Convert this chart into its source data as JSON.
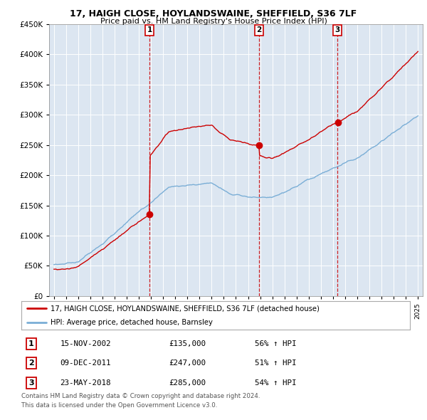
{
  "title": "17, HAIGH CLOSE, HOYLANDSWAINE, SHEFFIELD, S36 7LF",
  "subtitle": "Price paid vs. HM Land Registry's House Price Index (HPI)",
  "background_color": "#ffffff",
  "plot_bg_color": "#dce6f1",
  "grid_color": "#ffffff",
  "ylim": [
    0,
    450000
  ],
  "yticks": [
    0,
    50000,
    100000,
    150000,
    200000,
    250000,
    300000,
    350000,
    400000,
    450000
  ],
  "sale_info": [
    {
      "label": "1",
      "date": "15-NOV-2002",
      "price": "£135,000",
      "hpi": "56% ↑ HPI"
    },
    {
      "label": "2",
      "date": "09-DEC-2011",
      "price": "£247,000",
      "hpi": "51% ↑ HPI"
    },
    {
      "label": "3",
      "date": "23-MAY-2018",
      "price": "£285,000",
      "hpi": "54% ↑ HPI"
    }
  ],
  "legend_line1": "17, HAIGH CLOSE, HOYLANDSWAINE, SHEFFIELD, S36 7LF (detached house)",
  "legend_line2": "HPI: Average price, detached house, Barnsley",
  "footnote1": "Contains HM Land Registry data © Crown copyright and database right 2024.",
  "footnote2": "This data is licensed under the Open Government Licence v3.0.",
  "red_line_color": "#cc0000",
  "blue_line_color": "#7aaed6",
  "sale_times": [
    2002.875,
    2011.917,
    2018.375
  ],
  "sale_prices": [
    135000,
    247000,
    285000
  ],
  "sale_labels": [
    "1",
    "2",
    "3"
  ]
}
